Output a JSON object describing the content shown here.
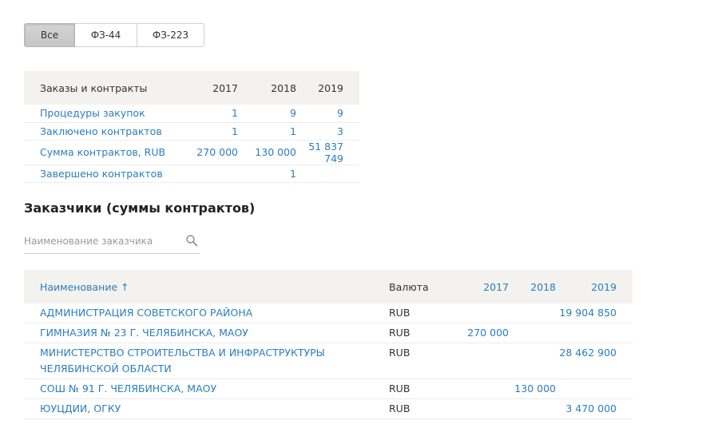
{
  "filter_tabs": [
    {
      "label": "Все",
      "active": true
    },
    {
      "label": "ФЗ-44",
      "active": false
    },
    {
      "label": "ФЗ-223",
      "active": false
    }
  ],
  "summary": {
    "header": {
      "label": "Заказы и контракты",
      "y2017": "2017",
      "y2018": "2018",
      "y2019": "2019"
    },
    "rows": [
      {
        "label": "Процедуры закупок",
        "y2017": "1",
        "y2018": "9",
        "y2019": "9"
      },
      {
        "label": "Заключено контрактов",
        "y2017": "1",
        "y2018": "1",
        "y2019": "3"
      },
      {
        "label": "Сумма контрактов, RUB",
        "y2017": "270 000",
        "y2018": "130 000",
        "y2019": "51 837 749"
      },
      {
        "label": "Завершено контрактов",
        "y2017": "",
        "y2018": "1",
        "y2019": ""
      }
    ]
  },
  "customers_section": {
    "title": "Заказчики (суммы контрактов)",
    "search_placeholder": "Наименование заказчика"
  },
  "customers_table": {
    "header": {
      "name": "Наименование",
      "sort_indicator": "↑",
      "currency": "Валюта",
      "y2017": "2017",
      "y2018": "2018",
      "y2019": "2019"
    },
    "rows": [
      {
        "name": "АДМИНИСТРАЦИЯ СОВЕТСКОГО РАЙОНА",
        "currency": "RUB",
        "y2017": "",
        "y2018": "",
        "y2019": "19 904 850"
      },
      {
        "name": "ГИМНАЗИЯ № 23 Г. ЧЕЛЯБИНСКА, МАОУ",
        "currency": "RUB",
        "y2017": "270 000",
        "y2018": "",
        "y2019": ""
      },
      {
        "name": "МИНИСТЕРСТВО СТРОИТЕЛЬСТВА И ИНФРАСТРУКТУРЫ ЧЕЛЯБИНСКОЙ ОБЛАСТИ",
        "currency": "RUB",
        "y2017": "",
        "y2018": "",
        "y2019": "28 462 900"
      },
      {
        "name": "СОШ № 91 Г. ЧЕЛЯБИНСКА, МАОУ",
        "currency": "RUB",
        "y2017": "",
        "y2018": "130 000",
        "y2019": ""
      },
      {
        "name": "ЮУЦДИИ, ОГКУ",
        "currency": "RUB",
        "y2017": "",
        "y2018": "",
        "y2019": "3 470 000"
      }
    ]
  },
  "colors": {
    "link": "#2a7ec0",
    "header_bg": "#f3f2ef",
    "active_tab_bg": "#c9c9c9"
  }
}
